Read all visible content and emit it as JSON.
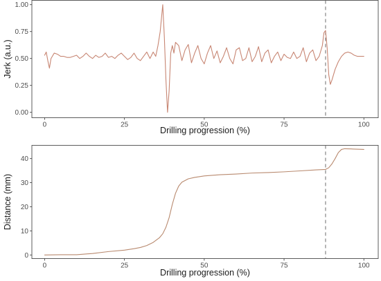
{
  "colors": {
    "jerk_line": "#c78572",
    "distance_line": "#b8896e",
    "vline": "#6b6b6b"
  },
  "chart_data": [
    {
      "type": "line",
      "title": "",
      "xlabel": "Drilling progression (%)",
      "ylabel": "Jerk (a.u.)",
      "xlim": [
        -4,
        104.5
      ],
      "ylim": [
        -0.05,
        1.04
      ],
      "xticks": [
        0,
        25,
        50,
        75,
        100
      ],
      "xtick_labels": [
        "0",
        "25",
        "50",
        "75",
        "100"
      ],
      "yticks": [
        0.0,
        0.25,
        0.5,
        0.75,
        1.0
      ],
      "ytick_labels": [
        "0.00",
        "0.25",
        "0.50",
        "0.75",
        "1.00"
      ],
      "grid": false,
      "vline_x": 88,
      "series": [
        {
          "x": [
            0,
            0.5,
            1,
            1.5,
            2,
            3,
            4,
            5,
            6,
            7,
            8,
            9,
            10,
            11,
            12,
            13,
            14,
            15,
            16,
            17,
            18,
            19,
            20,
            21,
            22,
            23,
            24,
            25,
            26,
            27,
            28,
            29,
            30,
            31,
            32,
            33,
            34,
            34.8,
            35.5,
            36.2,
            37,
            37.5,
            38,
            38.5,
            39,
            39.5,
            40,
            40.5,
            41,
            42,
            43,
            44,
            45,
            46,
            47,
            48,
            49,
            50,
            51,
            52,
            53,
            54,
            55,
            56,
            57,
            58,
            59,
            60,
            61,
            62,
            63,
            64,
            65,
            66,
            67,
            68,
            69,
            70,
            71,
            72,
            73,
            74,
            75,
            76,
            77,
            78,
            79,
            80,
            81,
            82,
            83,
            84,
            85,
            86,
            87,
            87.5,
            88,
            88.5,
            89,
            89.5,
            90,
            91,
            92,
            93,
            94,
            95,
            96,
            97,
            98,
            99,
            100
          ],
          "y": [
            0.53,
            0.56,
            0.48,
            0.41,
            0.5,
            0.55,
            0.54,
            0.52,
            0.52,
            0.51,
            0.51,
            0.52,
            0.53,
            0.5,
            0.52,
            0.55,
            0.52,
            0.5,
            0.53,
            0.51,
            0.52,
            0.55,
            0.51,
            0.52,
            0.5,
            0.53,
            0.55,
            0.52,
            0.49,
            0.51,
            0.55,
            0.5,
            0.48,
            0.52,
            0.56,
            0.5,
            0.56,
            0.52,
            0.62,
            0.75,
            1.0,
            0.7,
            0.3,
            0.0,
            0.2,
            0.55,
            0.62,
            0.55,
            0.65,
            0.62,
            0.48,
            0.58,
            0.63,
            0.46,
            0.55,
            0.62,
            0.5,
            0.45,
            0.55,
            0.62,
            0.5,
            0.57,
            0.46,
            0.52,
            0.6,
            0.5,
            0.45,
            0.58,
            0.6,
            0.48,
            0.5,
            0.6,
            0.47,
            0.52,
            0.61,
            0.47,
            0.55,
            0.58,
            0.46,
            0.52,
            0.56,
            0.48,
            0.54,
            0.51,
            0.5,
            0.56,
            0.5,
            0.52,
            0.6,
            0.47,
            0.55,
            0.58,
            0.48,
            0.52,
            0.62,
            0.74,
            0.76,
            0.6,
            0.35,
            0.26,
            0.3,
            0.4,
            0.47,
            0.52,
            0.55,
            0.56,
            0.55,
            0.53,
            0.52,
            0.52,
            0.52
          ]
        }
      ]
    },
    {
      "type": "line",
      "title": "",
      "xlabel": "Drilling progression (%)",
      "ylabel": "Distance (mm)",
      "xlim": [
        -4,
        104.5
      ],
      "ylim": [
        -1.5,
        45.5
      ],
      "xticks": [
        0,
        25,
        50,
        75,
        100
      ],
      "xtick_labels": [
        "0",
        "25",
        "50",
        "75",
        "100"
      ],
      "yticks": [
        0,
        10,
        20,
        30,
        40
      ],
      "ytick_labels": [
        "0",
        "10",
        "20",
        "30",
        "40"
      ],
      "grid": false,
      "vline_x": 88,
      "series": [
        {
          "x": [
            0,
            5,
            10,
            15,
            20,
            25,
            28,
            30,
            32,
            34,
            36,
            37,
            38,
            39,
            40,
            41,
            42,
            43,
            45,
            47,
            50,
            55,
            60,
            65,
            70,
            75,
            80,
            85,
            88,
            89,
            90,
            91,
            92,
            93,
            94,
            96,
            100
          ],
          "y": [
            0,
            0.1,
            0.1,
            0.6,
            1.4,
            2.0,
            2.6,
            3.1,
            3.9,
            5.2,
            7.2,
            8.8,
            11.5,
            15.5,
            21.0,
            25.6,
            28.6,
            30.2,
            31.6,
            32.2,
            32.8,
            33.3,
            33.6,
            34.0,
            34.2,
            34.5,
            34.9,
            35.3,
            35.5,
            36.2,
            37.8,
            40.0,
            42.5,
            43.8,
            44.1,
            44.0,
            43.8
          ]
        }
      ]
    }
  ]
}
